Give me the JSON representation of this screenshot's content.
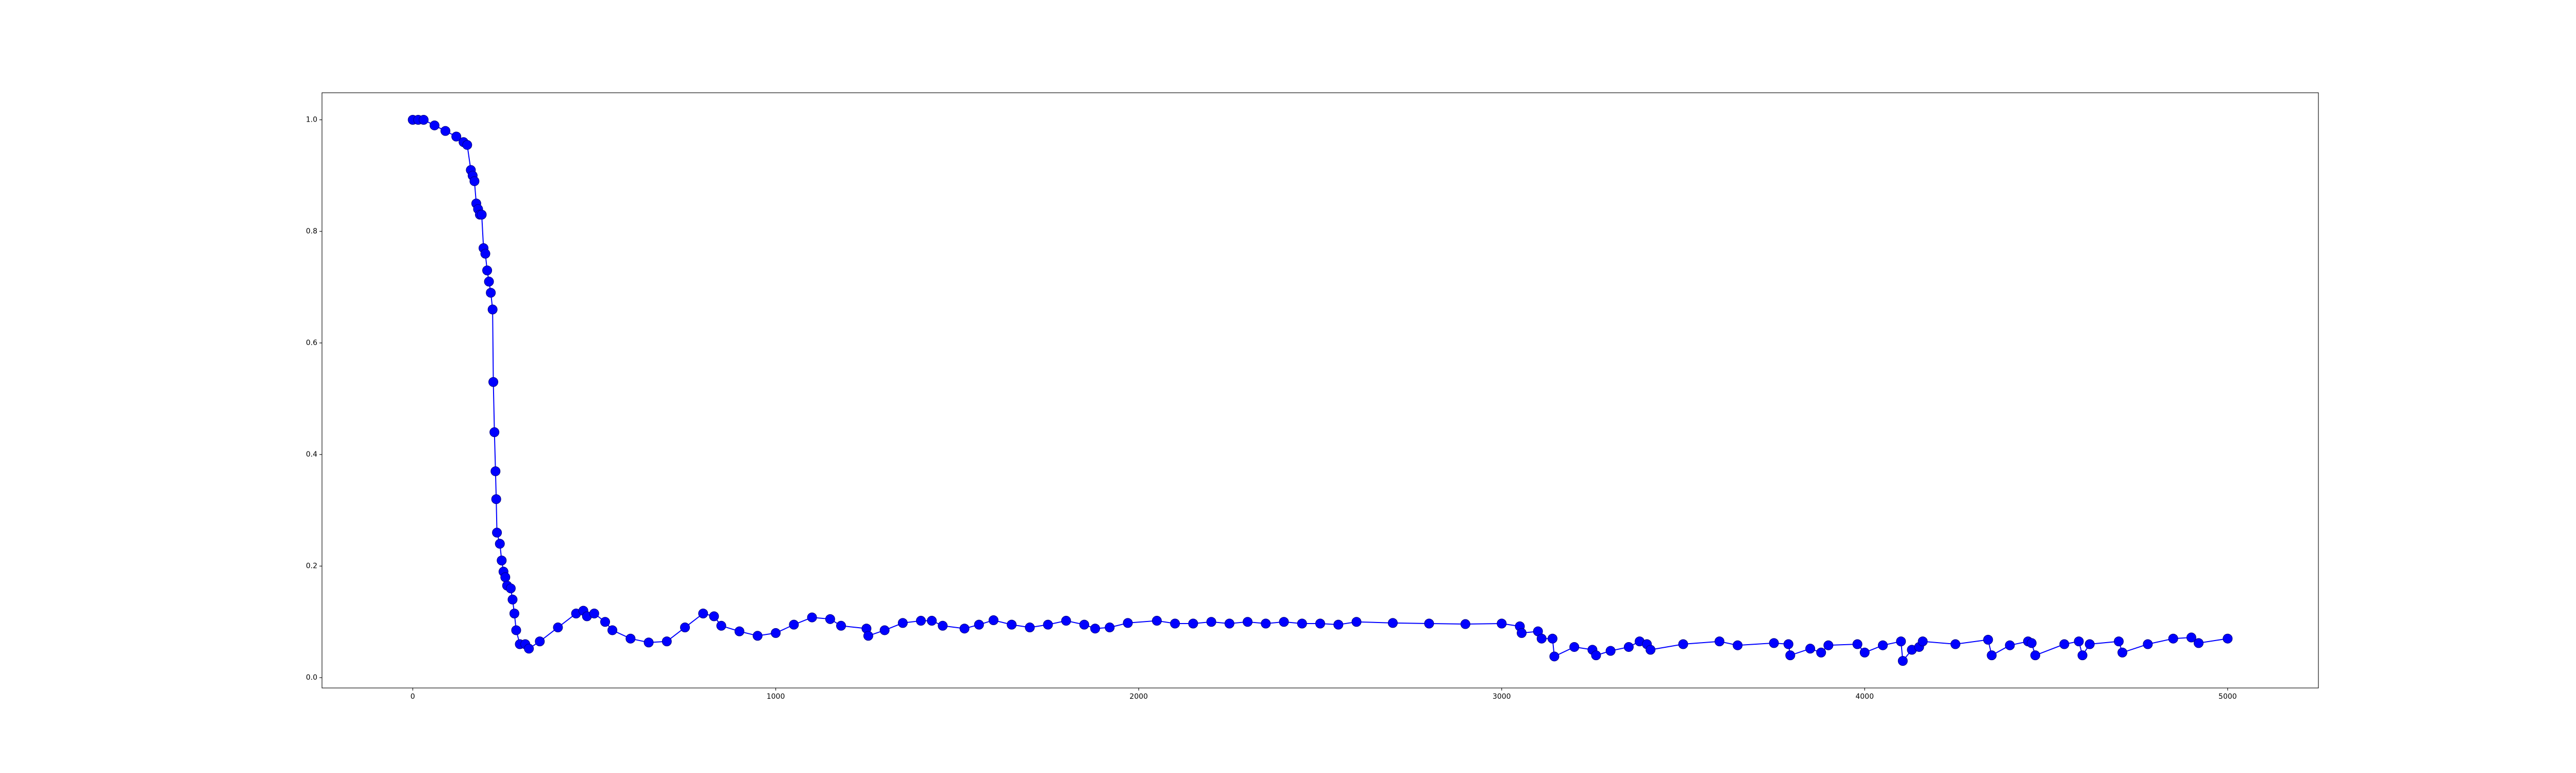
{
  "chart_data": {
    "type": "line",
    "color": "#0000ff",
    "marker": "circle",
    "xlim": [
      -250,
      5250
    ],
    "ylim": [
      -0.0185,
      1.0485
    ],
    "xticks": [
      0,
      1000,
      2000,
      3000,
      4000,
      5000
    ],
    "yticks": [
      {
        "value": 0,
        "label": "0.0"
      },
      0.2,
      0.4,
      0.6,
      0.8,
      {
        "value": 1,
        "label": "1.0"
      }
    ],
    "x": [
      0,
      15,
      30,
      60,
      90,
      120,
      140,
      150,
      160,
      165,
      170,
      175,
      180,
      185,
      190,
      195,
      200,
      205,
      210,
      215,
      220,
      222,
      225,
      228,
      230,
      232,
      240,
      245,
      250,
      255,
      260,
      270,
      275,
      280,
      285,
      295,
      310,
      320,
      350,
      400,
      450,
      470,
      480,
      500,
      530,
      550,
      600,
      650,
      700,
      750,
      800,
      830,
      850,
      900,
      950,
      1000,
      1050,
      1100,
      1150,
      1180,
      1250,
      1255,
      1300,
      1350,
      1400,
      1430,
      1460,
      1520,
      1560,
      1600,
      1650,
      1700,
      1750,
      1800,
      1850,
      1880,
      1920,
      1970,
      2050,
      2100,
      2150,
      2200,
      2250,
      2300,
      2350,
      2400,
      2450,
      2500,
      2550,
      2600,
      2700,
      2800,
      2900,
      3000,
      3050,
      3055,
      3100,
      3110,
      3140,
      3145,
      3200,
      3250,
      3260,
      3300,
      3350,
      3380,
      3400,
      3410,
      3500,
      3600,
      3650,
      3750,
      3790,
      3795,
      3850,
      3880,
      3900,
      3980,
      4000,
      4050,
      4100,
      4105,
      4130,
      4150,
      4160,
      4250,
      4340,
      4350,
      4400,
      4450,
      4460,
      4470,
      4550,
      4590,
      4600,
      4620,
      4700,
      4710,
      4780,
      4850,
      4900,
      4920,
      5000
    ],
    "values": [
      1.0,
      1.0,
      1.0,
      0.99,
      0.98,
      0.97,
      0.96,
      0.955,
      0.91,
      0.9,
      0.89,
      0.85,
      0.84,
      0.83,
      0.83,
      0.77,
      0.76,
      0.73,
      0.71,
      0.69,
      0.66,
      0.53,
      0.44,
      0.37,
      0.32,
      0.26,
      0.24,
      0.21,
      0.19,
      0.18,
      0.165,
      0.16,
      0.14,
      0.115,
      0.085,
      0.06,
      0.06,
      0.052,
      0.065,
      0.09,
      0.115,
      0.12,
      0.11,
      0.115,
      0.1,
      0.085,
      0.07,
      0.063,
      0.065,
      0.09,
      0.115,
      0.11,
      0.093,
      0.083,
      0.075,
      0.08,
      0.095,
      0.108,
      0.105,
      0.093,
      0.088,
      0.075,
      0.085,
      0.098,
      0.102,
      0.102,
      0.093,
      0.088,
      0.095,
      0.103,
      0.095,
      0.09,
      0.095,
      0.102,
      0.095,
      0.088,
      0.09,
      0.098,
      0.102,
      0.097,
      0.097,
      0.1,
      0.097,
      0.1,
      0.097,
      0.1,
      0.097,
      0.097,
      0.095,
      0.1,
      0.098,
      0.097,
      0.096,
      0.097,
      0.092,
      0.08,
      0.083,
      0.07,
      0.07,
      0.038,
      0.055,
      0.05,
      0.04,
      0.048,
      0.055,
      0.065,
      0.06,
      0.05,
      0.06,
      0.065,
      0.058,
      0.062,
      0.06,
      0.04,
      0.052,
      0.045,
      0.058,
      0.06,
      0.045,
      0.058,
      0.065,
      0.03,
      0.05,
      0.055,
      0.065,
      0.06,
      0.068,
      0.04,
      0.058,
      0.065,
      0.062,
      0.04,
      0.06,
      0.065,
      0.04,
      0.06,
      0.065,
      0.045,
      0.06,
      0.07,
      0.072,
      0.062,
      0.07
    ]
  }
}
